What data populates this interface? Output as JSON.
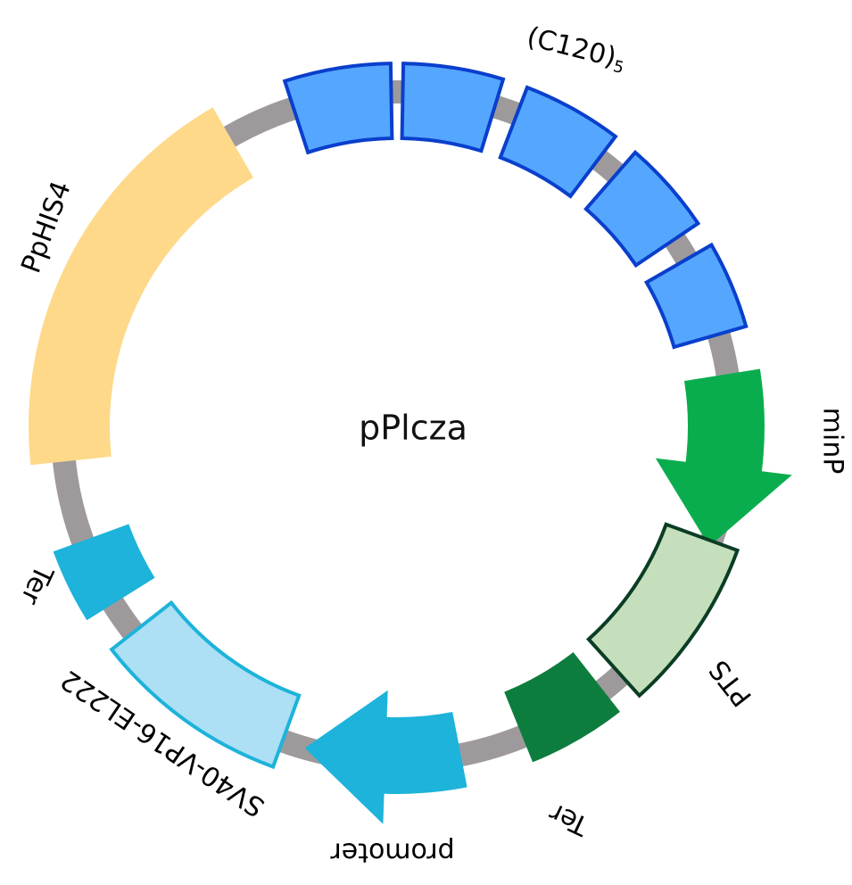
{
  "plasmid": {
    "name": "pPlcza",
    "backbone_color": "#9e9a9b"
  },
  "features": [
    {
      "id": "repeat-1",
      "type": "repeat-block",
      "fill": "#55a6ff",
      "stroke": "#0a3fcc"
    },
    {
      "id": "repeat-2",
      "type": "repeat-block",
      "fill": "#55a6ff",
      "stroke": "#0a3fcc"
    },
    {
      "id": "repeat-3",
      "type": "repeat-block",
      "fill": "#55a6ff",
      "stroke": "#0a3fcc"
    },
    {
      "id": "repeat-4",
      "type": "repeat-block",
      "fill": "#55a6ff",
      "stroke": "#0a3fcc"
    },
    {
      "id": "repeat-5",
      "type": "repeat-block",
      "fill": "#55a6ff",
      "stroke": "#0a3fcc"
    },
    {
      "id": "minP",
      "type": "arrow-clockwise",
      "fill": "#0aad4d"
    },
    {
      "id": "PTS",
      "type": "block",
      "fill": "#c5dfbc",
      "stroke": "#0b3d24"
    },
    {
      "id": "ter-right",
      "type": "block",
      "fill": "#0d7d3d"
    },
    {
      "id": "promoter",
      "type": "arrow-counterclockwise",
      "fill": "#1db3da"
    },
    {
      "id": "SV40-VP16-EL222",
      "type": "block",
      "fill": "#addff5",
      "stroke": "#1db3da"
    },
    {
      "id": "ter-left",
      "type": "block",
      "fill": "#1db3da"
    },
    {
      "id": "PpHIS4",
      "type": "block",
      "fill": "#fed98a"
    }
  ],
  "labels": {
    "repeat_main": "(C120)",
    "repeat_sub": "5",
    "minP": "minP",
    "PTS": "PTS",
    "ter_right": "Ter",
    "promoter": "promoter",
    "sv40": "SV40-VP16-EL222",
    "ter_left": "Ter",
    "pphis4": "PpHIS4"
  }
}
